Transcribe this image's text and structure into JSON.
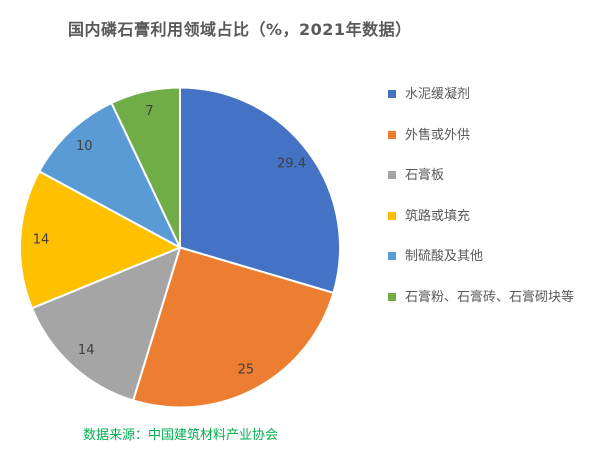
{
  "title": "国内磷石膏利用领域占比（%，2021年数据）",
  "source_note": "数据来源：中国建筑材料产业协会",
  "chart_data": {
    "type": "pie",
    "title": "国内磷石膏利用领域占比（%，2021年数据）",
    "start_angle_deg": 0,
    "direction": "clockwise",
    "legend_position": "right",
    "grid": false,
    "total": 99.4,
    "label_color": "#404040",
    "slices": [
      {
        "label": "水泥缓凝剂",
        "value": 29.4,
        "data_label": "29.4",
        "color": "#4472C4"
      },
      {
        "label": "外售或外供",
        "value": 25,
        "data_label": "25",
        "color": "#ED7D31"
      },
      {
        "label": "石膏板",
        "value": 14,
        "data_label": "14",
        "color": "#A5A5A5"
      },
      {
        "label": "筑路或填充",
        "value": 14,
        "data_label": "14",
        "color": "#FFC000"
      },
      {
        "label": "制硫酸及其他",
        "value": 10,
        "data_label": "10",
        "color": "#5B9BD5"
      },
      {
        "label": "石膏粉、石膏砖、石膏砌块等",
        "value": 7,
        "data_label": "7",
        "color": "#70AD47"
      }
    ]
  }
}
